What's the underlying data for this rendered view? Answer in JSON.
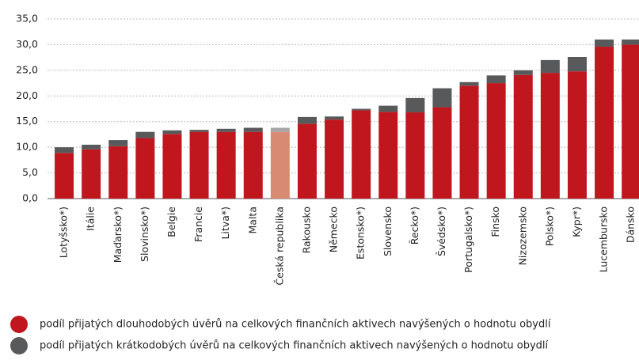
{
  "chart_data": {
    "type": "stacked_bar",
    "categories": [
      "Lotyšsko*)",
      "Itálie",
      "Maďarsko*)",
      "Slovinsko*)",
      "Belgie",
      "Francie",
      "Litva*)",
      "Malta",
      "Česká republika",
      "Rakousko",
      "Německo",
      "Estonsko*)",
      "Slovensko",
      "Řecko*)",
      "Švédsko*)",
      "Portugalsko*)",
      "Finsko",
      "Nizozemsko",
      "Polsko*)",
      "Kypr*)",
      "Lucembursko",
      "Dánsko"
    ],
    "series": [
      {
        "name": "podíl přijatých dlouhodobých úvěrů na celkových finančních aktivech navýšených o hodnotu obydlí",
        "color": "#c0171f",
        "highlight_color": "#d98a73",
        "values": [
          8.9,
          9.6,
          10.2,
          11.8,
          12.6,
          13.0,
          13.0,
          13.0,
          13.0,
          14.6,
          15.4,
          17.2,
          16.9,
          16.8,
          17.8,
          22.0,
          22.5,
          24.1,
          24.5,
          24.8,
          29.6,
          30.0
        ]
      },
      {
        "name": "podíl přijatých krátkodobých úvěrů na celkových finančních aktivech navýšených o hodnotu obydlí",
        "color": "#58595b",
        "highlight_color": "#a6a6a6",
        "values": [
          1.1,
          0.9,
          1.2,
          1.2,
          0.7,
          0.4,
          0.6,
          0.8,
          0.8,
          1.3,
          0.6,
          0.3,
          1.2,
          2.8,
          3.7,
          0.7,
          1.5,
          0.9,
          2.5,
          2.8,
          1.4,
          1.0
        ]
      }
    ],
    "highlight_category": "Česká republika",
    "ylim": [
      0,
      35
    ],
    "yticks": [
      {
        "value": 0,
        "label": "0,0"
      },
      {
        "value": 5,
        "label": "5,0"
      },
      {
        "value": 10,
        "label": "10,0"
      },
      {
        "value": 15,
        "label": "15,0"
      },
      {
        "value": 20,
        "label": "20,0"
      },
      {
        "value": 25,
        "label": "25,0"
      },
      {
        "value": 30,
        "label": "30,0"
      },
      {
        "value": 35,
        "label": "35,0"
      }
    ],
    "grid": true
  }
}
